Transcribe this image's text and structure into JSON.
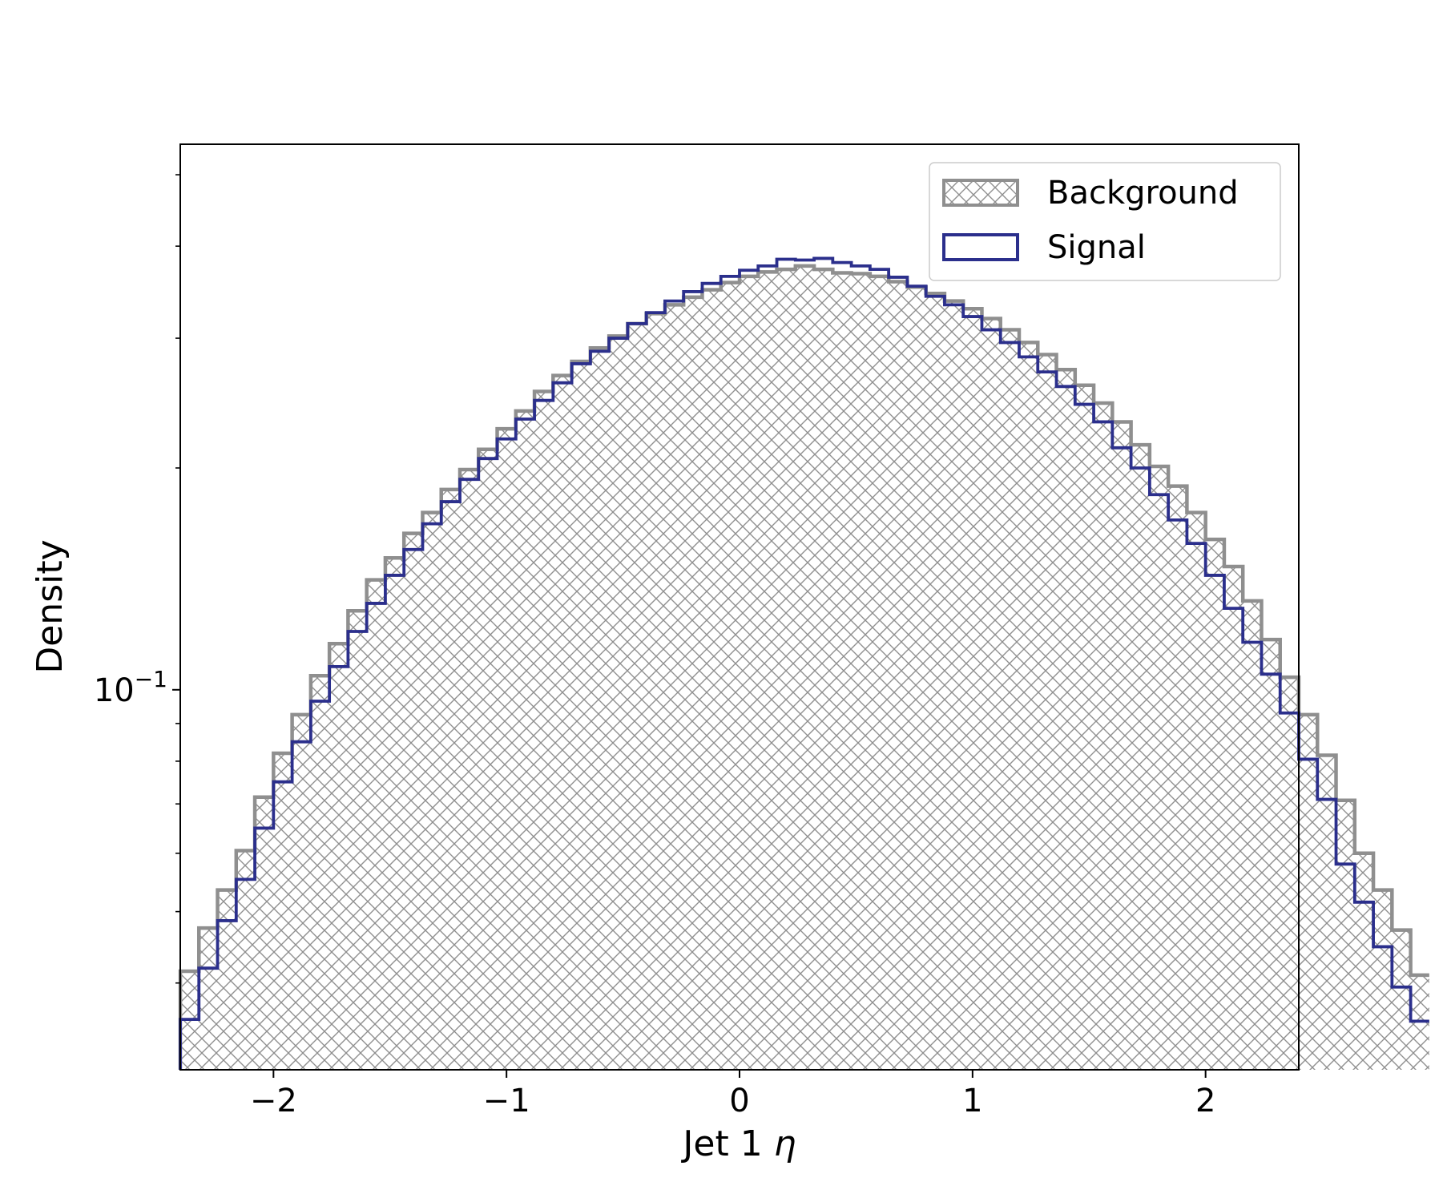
{
  "chart_data": {
    "type": "histogram",
    "title": "",
    "xlabel": "Jet 1",
    "xlabel_symbol": "η",
    "ylabel": "Density",
    "xlim": [
      -2.4,
      2.4
    ],
    "ylim": [
      0.0305,
      0.55
    ],
    "yscale": "log",
    "grid": false,
    "legend_position": "top-right",
    "x_ticks": [
      {
        "value": -2,
        "label": "−2"
      },
      {
        "value": -1,
        "label": "−1"
      },
      {
        "value": 0,
        "label": "0"
      },
      {
        "value": 1,
        "label": "1"
      },
      {
        "value": 2,
        "label": "2"
      }
    ],
    "y_ticks": [
      {
        "value": 0.1,
        "base": "10",
        "exponent": "−1"
      }
    ],
    "y_minor_ticks": [
      0.04,
      0.05,
      0.06,
      0.07,
      0.08,
      0.09,
      0.2,
      0.3,
      0.4,
      0.5
    ],
    "bin_edges_start": -2.4,
    "bin_width": 0.08,
    "series": [
      {
        "name": "Background",
        "style": "hatched step",
        "color": "#8f8f8f",
        "values": [
          0.0415,
          0.0475,
          0.0535,
          0.0605,
          0.0715,
          0.082,
          0.0925,
          0.1045,
          0.1155,
          0.128,
          0.141,
          0.151,
          0.163,
          0.174,
          0.187,
          0.199,
          0.212,
          0.226,
          0.239,
          0.254,
          0.267,
          0.279,
          0.291,
          0.302,
          0.314,
          0.324,
          0.333,
          0.341,
          0.349,
          0.357,
          0.364,
          0.369,
          0.372,
          0.376,
          0.372,
          0.368,
          0.367,
          0.364,
          0.358,
          0.352,
          0.345,
          0.337,
          0.329,
          0.319,
          0.308,
          0.296,
          0.285,
          0.272,
          0.259,
          0.245,
          0.231,
          0.215,
          0.201,
          0.189,
          0.174,
          0.16,
          0.147,
          0.132,
          0.117,
          0.104,
          0.0925,
          0.0815,
          0.0708,
          0.06,
          0.0535,
          0.0472,
          0.041
        ]
      },
      {
        "name": "Signal",
        "style": "step outline",
        "color": "#2b2f8c",
        "values": [
          0.0357,
          0.0419,
          0.0486,
          0.0553,
          0.0649,
          0.075,
          0.085,
          0.0965,
          0.1075,
          0.12,
          0.131,
          0.143,
          0.155,
          0.168,
          0.18,
          0.193,
          0.206,
          0.219,
          0.233,
          0.247,
          0.261,
          0.277,
          0.288,
          0.3,
          0.314,
          0.325,
          0.337,
          0.347,
          0.356,
          0.364,
          0.371,
          0.376,
          0.384,
          0.383,
          0.385,
          0.38,
          0.376,
          0.372,
          0.363,
          0.353,
          0.342,
          0.333,
          0.321,
          0.308,
          0.296,
          0.283,
          0.27,
          0.258,
          0.244,
          0.231,
          0.213,
          0.2,
          0.184,
          0.17,
          0.158,
          0.143,
          0.129,
          0.116,
          0.105,
          0.093,
          0.0805,
          0.071,
          0.058,
          0.0515,
          0.0448,
          0.0395,
          0.0355
        ]
      }
    ]
  }
}
